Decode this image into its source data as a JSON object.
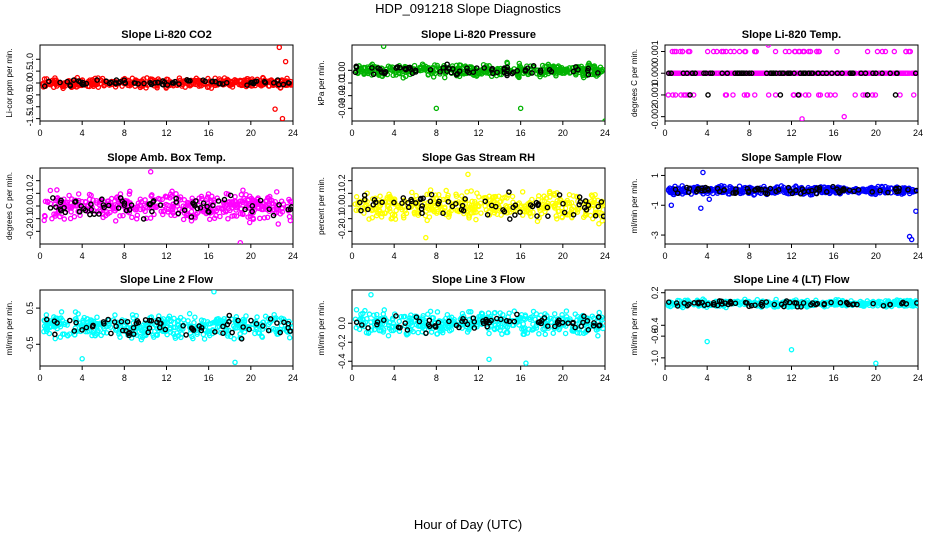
{
  "figure": {
    "title": "HDP_091218  Slope Diagnostics",
    "xlabel": "Hour of Day (UTC)"
  },
  "chart_data": [
    {
      "type": "scatter",
      "title": "Slope Li-820 CO2",
      "ylabel": "Li-cor ppm per min.",
      "xlim": [
        0,
        24
      ],
      "ylim": [
        -1.6,
        1.6
      ],
      "yticks": [
        -1.5,
        -1.0,
        -0.5,
        0.0,
        0.5,
        1.0
      ],
      "ytick_labels": [
        "-1.5",
        "-1.0",
        "-0.5",
        "0.0",
        "0.5",
        "1.0"
      ],
      "xticks": [
        0,
        4,
        8,
        12,
        16,
        20,
        24
      ],
      "xtick_labels": [
        "0",
        "4",
        "8",
        "12",
        "16",
        "20",
        "24"
      ],
      "color": "#ff0000",
      "spread": 0.15,
      "outliers": [
        [
          22.7,
          1.5
        ],
        [
          23.0,
          -1.5
        ],
        [
          22.3,
          -1.1
        ],
        [
          23.3,
          0.9
        ]
      ]
    },
    {
      "type": "scatter",
      "title": "Slope Li-820 Pressure",
      "ylabel": "kPa per min.",
      "xlim": [
        0,
        24
      ],
      "ylim": [
        -0.04,
        0.02
      ],
      "yticks": [
        -0.03,
        -0.02,
        -0.01,
        0.0
      ],
      "ytick_labels": [
        "-0.03",
        "-0.02",
        "-0.01",
        "0.00"
      ],
      "xticks": [
        0,
        4,
        8,
        12,
        16,
        20,
        24
      ],
      "xtick_labels": [
        "0",
        "4",
        "8",
        "12",
        "16",
        "20",
        "24"
      ],
      "color": "#00b300",
      "spread": 0.004,
      "outliers": [
        [
          8.0,
          -0.03
        ],
        [
          16.0,
          -0.03
        ],
        [
          24.0,
          -0.04
        ],
        [
          3.0,
          0.019
        ]
      ]
    },
    {
      "type": "scatter",
      "title": "Slope Li-820 Temp.",
      "ylabel": "degrees C per min.",
      "xlim": [
        0,
        24
      ],
      "ylim": [
        -0.0022,
        0.0013
      ],
      "yticks": [
        -0.002,
        -0.001,
        0.0,
        0.001
      ],
      "ytick_labels": [
        "-0.002",
        "-0.001",
        "0.000",
        "0.001"
      ],
      "xticks": [
        0,
        4,
        8,
        12,
        16,
        20,
        24
      ],
      "xtick_labels": [
        "0",
        "4",
        "8",
        "12",
        "16",
        "20",
        "24"
      ],
      "color": "#ff00ff",
      "levels": [
        -0.001,
        0.0,
        0.001
      ],
      "outliers": [
        [
          9.8,
          0.0013
        ],
        [
          17.0,
          -0.002
        ],
        [
          13.0,
          -0.0021
        ]
      ]
    },
    {
      "type": "scatter",
      "title": "Slope Amb. Box Temp.",
      "ylabel": "degrees C per min.",
      "xlim": [
        0,
        24
      ],
      "ylim": [
        -0.3,
        0.3
      ],
      "yticks": [
        -0.2,
        -0.1,
        0.0,
        0.1,
        0.2
      ],
      "ytick_labels": [
        "-0.2",
        "-0.1",
        "0.0",
        "0.1",
        "0.2"
      ],
      "xticks": [
        0,
        4,
        8,
        12,
        16,
        20,
        24
      ],
      "xtick_labels": [
        "0",
        "4",
        "8",
        "12",
        "16",
        "20",
        "24"
      ],
      "color": "#ff00ff",
      "spread": 0.09,
      "outliers": [
        [
          19.0,
          -0.29
        ],
        [
          10.5,
          0.27
        ]
      ]
    },
    {
      "type": "scatter",
      "title": "Slope Gas Stream RH",
      "ylabel": "percent per min.",
      "xlim": [
        0,
        24
      ],
      "ylim": [
        -0.3,
        0.3
      ],
      "yticks": [
        -0.2,
        -0.1,
        0.0,
        0.1,
        0.2
      ],
      "ytick_labels": [
        "-0.2",
        "-0.1",
        "0.0",
        "0.1",
        "0.2"
      ],
      "xticks": [
        0,
        4,
        8,
        12,
        16,
        20,
        24
      ],
      "xtick_labels": [
        "0",
        "4",
        "8",
        "12",
        "16",
        "20",
        "24"
      ],
      "color": "#ffff00",
      "spread": 0.09,
      "outliers": [
        [
          11.0,
          0.25
        ],
        [
          7.0,
          -0.25
        ]
      ]
    },
    {
      "type": "scatter",
      "title": "Slope Sample Flow",
      "ylabel": "ml/min per min.",
      "xlim": [
        0,
        24
      ],
      "ylim": [
        -3.6,
        1.5
      ],
      "yticks": [
        -3,
        -1,
        1
      ],
      "ytick_labels": [
        "-3",
        "-1",
        "1"
      ],
      "xticks": [
        0,
        4,
        8,
        12,
        16,
        20,
        24
      ],
      "xtick_labels": [
        "0",
        "4",
        "8",
        "12",
        "16",
        "20",
        "24"
      ],
      "color": "#0000ff",
      "spread": 0.22,
      "outliers": [
        [
          23.2,
          -3.1
        ],
        [
          23.4,
          -3.3
        ],
        [
          3.6,
          1.2
        ],
        [
          3.4,
          -1.2
        ],
        [
          4.2,
          -0.6
        ],
        [
          23.8,
          -1.4
        ],
        [
          0.6,
          -1.0
        ]
      ]
    },
    {
      "type": "scatter",
      "title": "Slope Line 2 Flow",
      "ylabel": "ml/min per min.",
      "xlim": [
        0,
        24
      ],
      "ylim": [
        -1.1,
        1.0
      ],
      "yticks": [
        -0.5,
        0.5
      ],
      "ytick_labels": [
        "-0.5",
        "0.5"
      ],
      "xticks": [
        0,
        4,
        8,
        12,
        16,
        20,
        24
      ],
      "xtick_labels": [
        "0",
        "4",
        "8",
        "12",
        "16",
        "20",
        "24"
      ],
      "color": "#00ffff",
      "spread": 0.28,
      "outliers": [
        [
          18.5,
          -1.0
        ],
        [
          16.5,
          0.95
        ],
        [
          4.0,
          -0.9
        ]
      ]
    },
    {
      "type": "scatter",
      "title": "Slope Line 3 Flow",
      "ylabel": "ml/min per min.",
      "xlim": [
        0,
        24
      ],
      "ylim": [
        -0.45,
        0.35
      ],
      "yticks": [
        -0.4,
        -0.2,
        0.0
      ],
      "ytick_labels": [
        "-0.4",
        "-0.2",
        "0.0"
      ],
      "xticks": [
        0,
        4,
        8,
        12,
        16,
        20,
        24
      ],
      "xtick_labels": [
        "0",
        "4",
        "8",
        "12",
        "16",
        "20",
        "24"
      ],
      "color": "#00ffff",
      "spread": 0.1,
      "outliers": [
        [
          16.5,
          -0.42
        ],
        [
          13.0,
          -0.38
        ],
        [
          1.8,
          0.3
        ]
      ]
    },
    {
      "type": "scatter",
      "title": "Slope Line 4 (LT) Flow",
      "ylabel": "ml/min per min.",
      "xlim": [
        0,
        24
      ],
      "ylim": [
        -1.15,
        0.25
      ],
      "yticks": [
        -1.0,
        -0.6,
        -0.4,
        0.2
      ],
      "ytick_labels": [
        "-1.0",
        "-0.6",
        "-0.4",
        "0.2"
      ],
      "xticks": [
        0,
        4,
        8,
        12,
        16,
        20,
        24
      ],
      "xtick_labels": [
        "0",
        "4",
        "8",
        "12",
        "16",
        "20",
        "24"
      ],
      "color": "#00ffff",
      "spread": 0.05,
      "outliers": [
        [
          4.0,
          -0.7
        ],
        [
          12.0,
          -0.85
        ],
        [
          20.0,
          -1.1
        ]
      ]
    }
  ]
}
